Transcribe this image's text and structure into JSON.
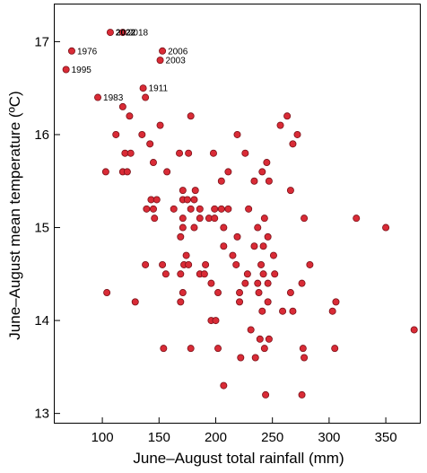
{
  "chart_data": {
    "type": "scatter",
    "title": "",
    "xlabel": "June–August total rainfall (mm)",
    "ylabel": "June–August mean temperature (ºC)",
    "xlim": [
      58,
      380
    ],
    "ylim": [
      12.9,
      17.4
    ],
    "xticks": [
      100,
      150,
      200,
      250,
      300,
      350
    ],
    "yticks": [
      13,
      14,
      15,
      16,
      17
    ],
    "xtick_labels": [
      "100",
      "150",
      "200",
      "250",
      "300",
      "350"
    ],
    "ytick_labels": [
      "13",
      "14",
      "15",
      "16",
      "17"
    ],
    "grid": false,
    "marker_color": "#d92b36",
    "marker_edge_color": "#7a1018",
    "labeled_points": [
      {
        "label": "2022",
        "x": 107,
        "y": 17.1,
        "bold": true
      },
      {
        "label": "2018",
        "x": 118,
        "y": 17.1,
        "bold": false
      },
      {
        "label": "1976",
        "x": 73,
        "y": 16.9,
        "bold": false
      },
      {
        "label": "2006",
        "x": 153,
        "y": 16.9,
        "bold": false
      },
      {
        "label": "2003",
        "x": 151,
        "y": 16.8,
        "bold": false
      },
      {
        "label": "1995",
        "x": 68,
        "y": 16.7,
        "bold": false
      },
      {
        "label": "1911",
        "x": 136,
        "y": 16.5,
        "bold": false
      },
      {
        "label": "1983",
        "x": 96,
        "y": 16.4,
        "bold": false
      }
    ],
    "points": [
      {
        "x": 107,
        "y": 17.1
      },
      {
        "x": 118,
        "y": 17.1
      },
      {
        "x": 73,
        "y": 16.9
      },
      {
        "x": 153,
        "y": 16.9
      },
      {
        "x": 151,
        "y": 16.8
      },
      {
        "x": 68,
        "y": 16.7
      },
      {
        "x": 136,
        "y": 16.5
      },
      {
        "x": 96,
        "y": 16.4
      },
      {
        "x": 138,
        "y": 16.4
      },
      {
        "x": 118,
        "y": 16.3
      },
      {
        "x": 124,
        "y": 16.2
      },
      {
        "x": 178,
        "y": 16.2
      },
      {
        "x": 263,
        "y": 16.2
      },
      {
        "x": 151,
        "y": 16.1
      },
      {
        "x": 257,
        "y": 16.1
      },
      {
        "x": 112,
        "y": 16.0
      },
      {
        "x": 135,
        "y": 16.0
      },
      {
        "x": 219,
        "y": 16.0
      },
      {
        "x": 272,
        "y": 16.0
      },
      {
        "x": 142,
        "y": 15.9
      },
      {
        "x": 268,
        "y": 15.9
      },
      {
        "x": 120,
        "y": 15.8
      },
      {
        "x": 125,
        "y": 15.8
      },
      {
        "x": 168,
        "y": 15.8
      },
      {
        "x": 176,
        "y": 15.8
      },
      {
        "x": 198,
        "y": 15.8
      },
      {
        "x": 226,
        "y": 15.8
      },
      {
        "x": 145,
        "y": 15.7
      },
      {
        "x": 245,
        "y": 15.7
      },
      {
        "x": 103,
        "y": 15.6
      },
      {
        "x": 118,
        "y": 15.6
      },
      {
        "x": 122,
        "y": 15.6
      },
      {
        "x": 157,
        "y": 15.6
      },
      {
        "x": 211,
        "y": 15.6
      },
      {
        "x": 241,
        "y": 15.6
      },
      {
        "x": 205,
        "y": 15.5
      },
      {
        "x": 234,
        "y": 15.5
      },
      {
        "x": 247,
        "y": 15.5
      },
      {
        "x": 171,
        "y": 15.4
      },
      {
        "x": 182,
        "y": 15.4
      },
      {
        "x": 266,
        "y": 15.4
      },
      {
        "x": 143,
        "y": 15.3
      },
      {
        "x": 148,
        "y": 15.3
      },
      {
        "x": 171,
        "y": 15.3
      },
      {
        "x": 175,
        "y": 15.3
      },
      {
        "x": 181,
        "y": 15.3
      },
      {
        "x": 139,
        "y": 15.2
      },
      {
        "x": 145,
        "y": 15.2
      },
      {
        "x": 163,
        "y": 15.2
      },
      {
        "x": 178,
        "y": 15.2
      },
      {
        "x": 186,
        "y": 15.2
      },
      {
        "x": 199,
        "y": 15.2
      },
      {
        "x": 205,
        "y": 15.2
      },
      {
        "x": 211,
        "y": 15.2
      },
      {
        "x": 229,
        "y": 15.2
      },
      {
        "x": 146,
        "y": 15.1
      },
      {
        "x": 171,
        "y": 15.1
      },
      {
        "x": 186,
        "y": 15.1
      },
      {
        "x": 194,
        "y": 15.1
      },
      {
        "x": 199,
        "y": 15.1
      },
      {
        "x": 243,
        "y": 15.1
      },
      {
        "x": 278,
        "y": 15.1
      },
      {
        "x": 324,
        "y": 15.1
      },
      {
        "x": 171,
        "y": 15.0
      },
      {
        "x": 181,
        "y": 15.0
      },
      {
        "x": 207,
        "y": 15.0
      },
      {
        "x": 237,
        "y": 15.0
      },
      {
        "x": 350,
        "y": 15.0
      },
      {
        "x": 169,
        "y": 14.9
      },
      {
        "x": 219,
        "y": 14.9
      },
      {
        "x": 246,
        "y": 14.9
      },
      {
        "x": 207,
        "y": 14.8
      },
      {
        "x": 234,
        "y": 14.8
      },
      {
        "x": 242,
        "y": 14.8
      },
      {
        "x": 174,
        "y": 14.7
      },
      {
        "x": 215,
        "y": 14.7
      },
      {
        "x": 251,
        "y": 14.7
      },
      {
        "x": 138,
        "y": 14.6
      },
      {
        "x": 153,
        "y": 14.6
      },
      {
        "x": 172,
        "y": 14.6
      },
      {
        "x": 176,
        "y": 14.6
      },
      {
        "x": 191,
        "y": 14.6
      },
      {
        "x": 218,
        "y": 14.6
      },
      {
        "x": 240,
        "y": 14.6
      },
      {
        "x": 283,
        "y": 14.6
      },
      {
        "x": 156,
        "y": 14.5
      },
      {
        "x": 169,
        "y": 14.5
      },
      {
        "x": 186,
        "y": 14.5
      },
      {
        "x": 190,
        "y": 14.5
      },
      {
        "x": 228,
        "y": 14.5
      },
      {
        "x": 242,
        "y": 14.5
      },
      {
        "x": 252,
        "y": 14.5
      },
      {
        "x": 196,
        "y": 14.4
      },
      {
        "x": 226,
        "y": 14.4
      },
      {
        "x": 237,
        "y": 14.4
      },
      {
        "x": 246,
        "y": 14.4
      },
      {
        "x": 276,
        "y": 14.4
      },
      {
        "x": 104,
        "y": 14.3
      },
      {
        "x": 171,
        "y": 14.3
      },
      {
        "x": 202,
        "y": 14.3
      },
      {
        "x": 221,
        "y": 14.3
      },
      {
        "x": 238,
        "y": 14.3
      },
      {
        "x": 266,
        "y": 14.3
      },
      {
        "x": 129,
        "y": 14.2
      },
      {
        "x": 169,
        "y": 14.2
      },
      {
        "x": 221,
        "y": 14.2
      },
      {
        "x": 246,
        "y": 14.2
      },
      {
        "x": 306,
        "y": 14.2
      },
      {
        "x": 241,
        "y": 14.1
      },
      {
        "x": 259,
        "y": 14.1
      },
      {
        "x": 268,
        "y": 14.1
      },
      {
        "x": 303,
        "y": 14.1
      },
      {
        "x": 196,
        "y": 14.0
      },
      {
        "x": 200,
        "y": 14.0
      },
      {
        "x": 231,
        "y": 13.9
      },
      {
        "x": 375,
        "y": 13.9
      },
      {
        "x": 239,
        "y": 13.8
      },
      {
        "x": 247,
        "y": 13.8
      },
      {
        "x": 154,
        "y": 13.7
      },
      {
        "x": 178,
        "y": 13.7
      },
      {
        "x": 202,
        "y": 13.7
      },
      {
        "x": 243,
        "y": 13.7
      },
      {
        "x": 277,
        "y": 13.7
      },
      {
        "x": 305,
        "y": 13.7
      },
      {
        "x": 222,
        "y": 13.6
      },
      {
        "x": 235,
        "y": 13.6
      },
      {
        "x": 278,
        "y": 13.6
      },
      {
        "x": 207,
        "y": 13.3
      },
      {
        "x": 244,
        "y": 13.2
      },
      {
        "x": 276,
        "y": 13.2
      }
    ]
  }
}
